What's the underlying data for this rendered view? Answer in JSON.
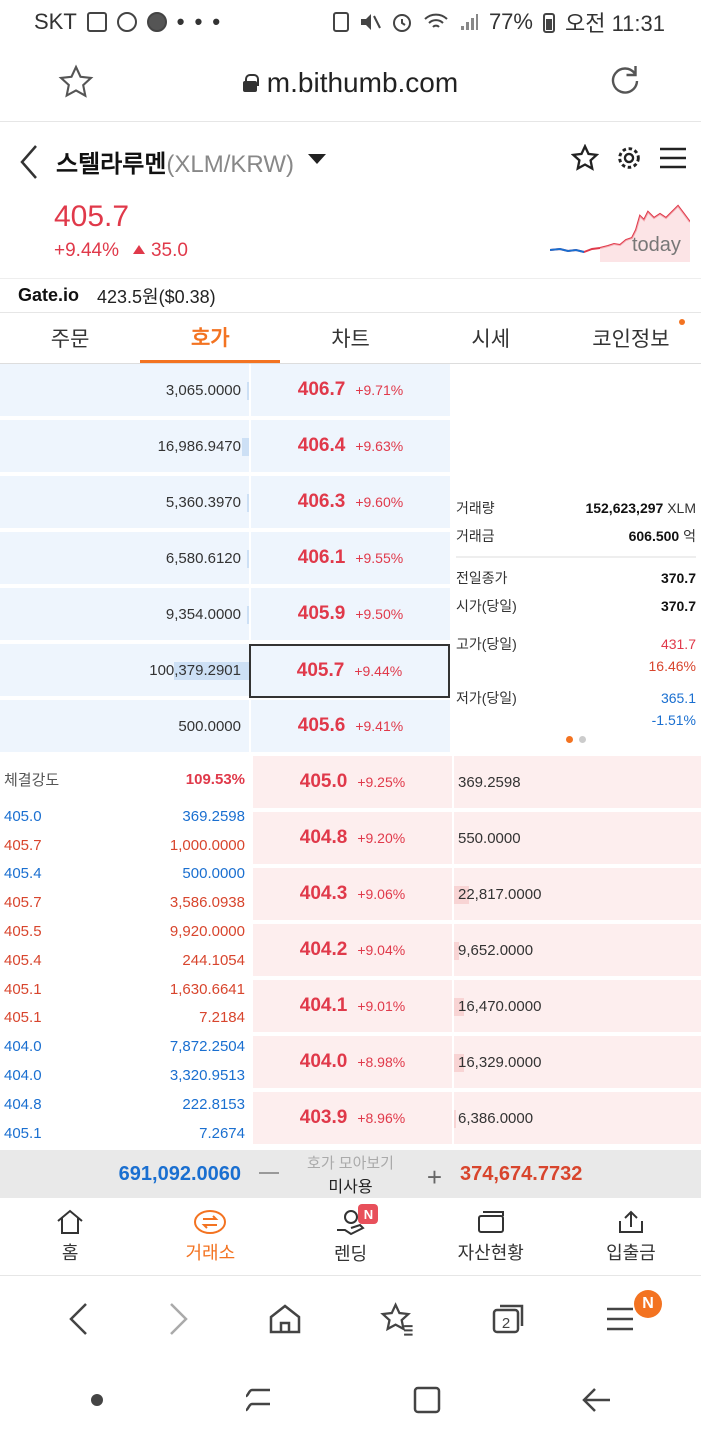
{
  "statusbar": {
    "carrier": "SKT",
    "dots": "• • •",
    "battery": "77%",
    "time": "오전 11:31"
  },
  "browser": {
    "url": "m.bithumb.com"
  },
  "coin": {
    "name": "스텔라루멘",
    "pair": "(XLM/KRW)"
  },
  "price": {
    "current": "405.7",
    "change_pct": "+9.44%",
    "change_abs": "35.0",
    "spark_label": "today"
  },
  "gate": {
    "label": "Gate.io",
    "value": "423.5원($0.38)"
  },
  "tabs": [
    {
      "label": "주문"
    },
    {
      "label": "호가",
      "active": true
    },
    {
      "label": "차트"
    },
    {
      "label": "시세"
    },
    {
      "label": "코인정보",
      "dot": true
    }
  ],
  "asks": [
    {
      "qty": "3,065.0000",
      "price": "406.7",
      "pct": "+9.71%",
      "depth": 0.01
    },
    {
      "qty": "16,986.9470",
      "price": "406.4",
      "pct": "+9.63%",
      "depth": 0.03
    },
    {
      "qty": "5,360.3970",
      "price": "406.3",
      "pct": "+9.60%",
      "depth": 0.01
    },
    {
      "qty": "6,580.6120",
      "price": "406.1",
      "pct": "+9.55%",
      "depth": 0.01
    },
    {
      "qty": "9,354.0000",
      "price": "405.9",
      "pct": "+9.50%",
      "depth": 0.01
    },
    {
      "qty": "100,379.2901",
      "price": "405.7",
      "pct": "+9.44%",
      "depth": 0.3,
      "selected": true
    },
    {
      "qty": "500.0000",
      "price": "405.6",
      "pct": "+9.41%",
      "depth": 0.0
    }
  ],
  "bids": [
    {
      "qty": "369.2598",
      "price": "405.0",
      "pct": "+9.25%",
      "depth": 0.0
    },
    {
      "qty": "550.0000",
      "price": "404.8",
      "pct": "+9.20%",
      "depth": 0.0
    },
    {
      "qty": "22,817.0000",
      "price": "404.3",
      "pct": "+9.06%",
      "depth": 0.06
    },
    {
      "qty": "9,652.0000",
      "price": "404.2",
      "pct": "+9.04%",
      "depth": 0.02
    },
    {
      "qty": "16,470.0000",
      "price": "404.1",
      "pct": "+9.01%",
      "depth": 0.04
    },
    {
      "qty": "16,329.0000",
      "price": "404.0",
      "pct": "+8.98%",
      "depth": 0.04
    },
    {
      "qty": "6,386.0000",
      "price": "403.9",
      "pct": "+8.96%",
      "depth": 0.01
    }
  ],
  "stats": {
    "volume_label": "거래량",
    "volume": "152,623,297",
    "volume_unit": "XLM",
    "amount_label": "거래금",
    "amount": "606.500",
    "amount_unit": "억",
    "prev_close_label": "전일종가",
    "prev_close": "370.7",
    "open_label": "시가(당일)",
    "open": "370.7",
    "high_label": "고가(당일)",
    "high": "431.7",
    "high_pct": "16.46%",
    "low_label": "저가(당일)",
    "low": "365.1",
    "low_pct": "-1.51%"
  },
  "trades": {
    "strength_label": "체결강도",
    "strength": "109.53%",
    "rows": [
      {
        "price": "405.0",
        "qty": "369.2598",
        "side": "blue"
      },
      {
        "price": "405.7",
        "qty": "1,000.0000",
        "side": "red"
      },
      {
        "price": "405.4",
        "qty": "500.0000",
        "side": "blue"
      },
      {
        "price": "405.7",
        "qty": "3,586.0938",
        "side": "red"
      },
      {
        "price": "405.5",
        "qty": "9,920.0000",
        "side": "red"
      },
      {
        "price": "405.4",
        "qty": "244.1054",
        "side": "red"
      },
      {
        "price": "405.1",
        "qty": "1,630.6641",
        "side": "red"
      },
      {
        "price": "405.1",
        "qty": "7.2184",
        "side": "red"
      },
      {
        "price": "404.0",
        "qty": "7,872.2504",
        "side": "blue"
      },
      {
        "price": "404.0",
        "qty": "3,320.9513",
        "side": "blue"
      },
      {
        "price": "404.8",
        "qty": "222.8153",
        "side": "blue"
      },
      {
        "price": "405.1",
        "qty": "7.2674",
        "side": "blue"
      }
    ]
  },
  "totals": {
    "ask_total": "691,092.0060",
    "group_label": "호가 모아보기",
    "group_value": "미사용",
    "bid_total": "374,674.7732"
  },
  "appnav": [
    {
      "label": "홈",
      "icon": "home-icon"
    },
    {
      "label": "거래소",
      "icon": "exchange-icon",
      "active": true
    },
    {
      "label": "렌딩",
      "icon": "lending-icon",
      "badge": "N"
    },
    {
      "label": "자산현황",
      "icon": "wallet-icon"
    },
    {
      "label": "입출금",
      "icon": "transfer-icon"
    }
  ],
  "browsernav": {
    "badge": "N",
    "tabs_count": "2"
  },
  "colors": {
    "accent": "#f37321",
    "up": "#e0394a",
    "down": "#1a6fd0",
    "ask_bg": "#eef5fd",
    "bid_bg": "#fdeeee"
  }
}
